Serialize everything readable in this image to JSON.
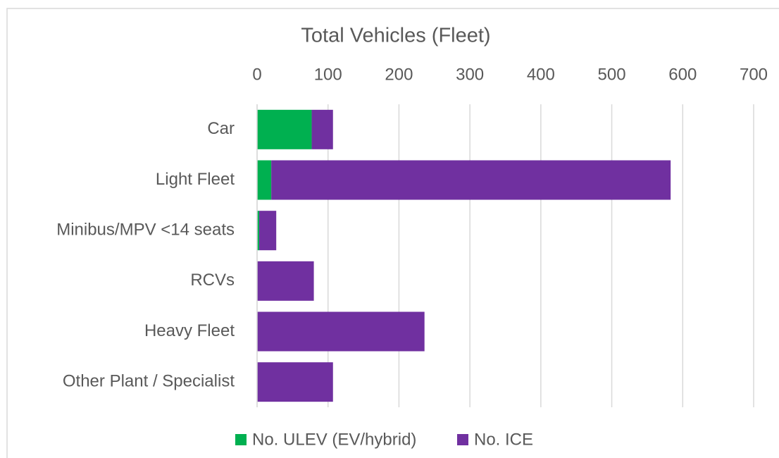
{
  "chart_data": {
    "type": "stacked-bar-horizontal",
    "title": "Total Vehicles (Fleet)",
    "categories": [
      "Car",
      "Light Fleet",
      "Minibus/MPV <14 seats",
      "RCVs",
      "Heavy Fleet",
      "Other Plant / Specialist"
    ],
    "series": [
      {
        "name": "No. ULEV (EV/hybrid)",
        "color": "#00b050",
        "values": [
          77,
          20,
          3,
          0,
          0,
          0
        ]
      },
      {
        "name": "No. ICE",
        "color": "#7030a0",
        "values": [
          30,
          563,
          24,
          80,
          236,
          107
        ]
      }
    ],
    "xlim": [
      0,
      700
    ],
    "xticks": [
      0,
      100,
      200,
      300,
      400,
      500,
      600,
      700
    ],
    "grid": true,
    "legend": "bottom"
  }
}
